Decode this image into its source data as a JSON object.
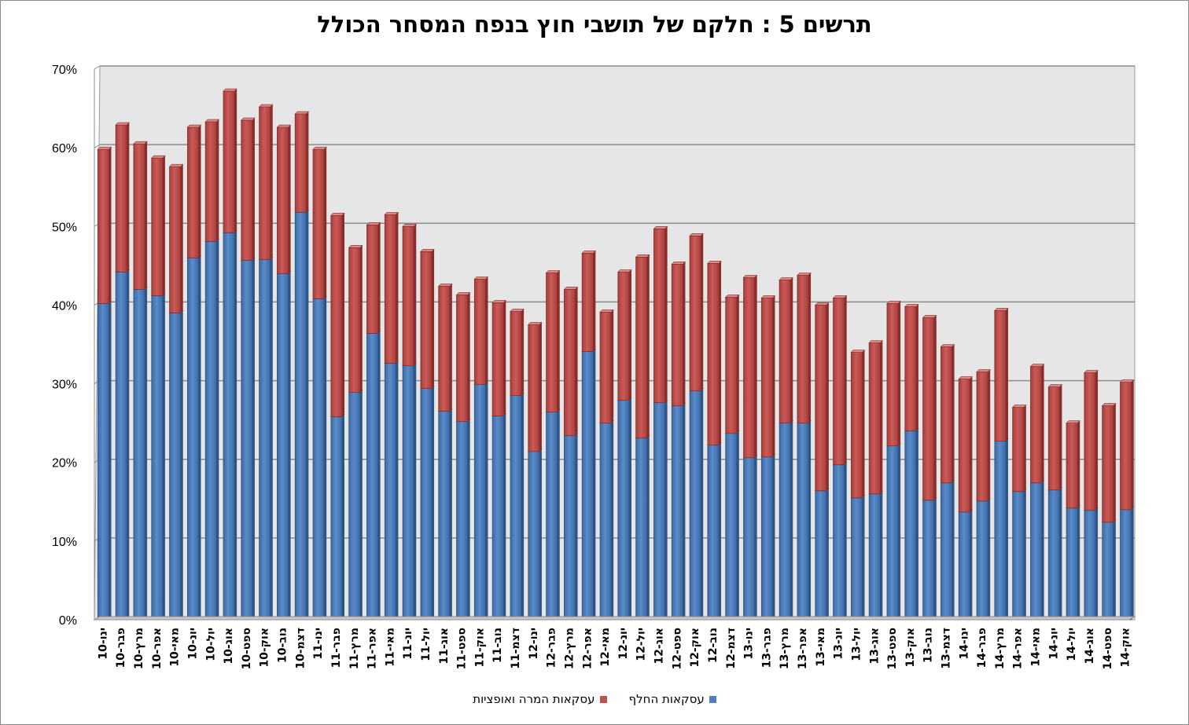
{
  "chart_data": {
    "type": "bar",
    "stacked": true,
    "title": "תרשים 5 : חלקם של תושבי חוץ בנפח המסחר הכולל",
    "xlabel": "",
    "ylabel": "",
    "ylim": [
      0,
      70
    ],
    "y_ticks": [
      "0%",
      "10%",
      "20%",
      "30%",
      "40%",
      "50%",
      "60%",
      "70%"
    ],
    "grid": true,
    "legend_position": "bottom",
    "categories": [
      "ינו-10",
      "פבר-10",
      "מרץ-10",
      "אפר-10",
      "מאי-10",
      "יונ-10",
      "יול-10",
      "אוג-10",
      "ספט-10",
      "אוק-10",
      "נוב-10",
      "דצמ-10",
      "ינו-11",
      "פבר-11",
      "מרץ-11",
      "אפר-11",
      "מאי-11",
      "יונ-11",
      "יול-11",
      "אוג-11",
      "ספט-11",
      "אוק-11",
      "נוב-11",
      "דצמ-11",
      "ינו-12",
      "פבר-12",
      "מרץ-12",
      "אפר-12",
      "מאי-12",
      "יונ-12",
      "יול-12",
      "אוג-12",
      "ספט-12",
      "אוק-12",
      "נוב-12",
      "דצמ-12",
      "ינו-13",
      "פבר-13",
      "מרץ-13",
      "אפר-13",
      "מאי-13",
      "יונ-13",
      "יול-13",
      "אוג-13",
      "ספט-13",
      "אוק-13",
      "נוב-13",
      "דצמ-13",
      "ינו-14",
      "פבר-14",
      "מרץ-14",
      "אפר-14",
      "מאי-14",
      "יונ-14",
      "יול-14",
      "אוג-14",
      "ספט-14",
      "אוק-14"
    ],
    "series": [
      {
        "name": "עסקאות החלף",
        "color": "#4f81bd",
        "values": [
          40.2,
          44.2,
          42.0,
          41.2,
          39.0,
          46.0,
          48.1,
          49.2,
          45.7,
          45.8,
          44.0,
          51.8,
          40.8,
          25.8,
          28.9,
          36.4,
          32.6,
          32.3,
          29.4,
          26.5,
          25.2,
          29.9,
          25.9,
          28.5,
          21.4,
          26.4,
          23.4,
          34.1,
          25.0,
          27.9,
          23.1,
          27.6,
          27.2,
          29.1,
          22.2,
          23.7,
          20.6,
          20.7,
          25.0,
          25.0,
          16.4,
          19.7,
          15.5,
          16.0,
          22.1,
          24.0,
          15.2,
          17.4,
          13.7,
          15.1,
          22.7,
          16.3,
          17.4,
          16.5,
          14.2,
          13.9,
          12.4,
          14.0
        ]
      },
      {
        "name": "עסקאות המרה ואופציות",
        "color": "#c0504d",
        "values": [
          19.6,
          18.7,
          18.5,
          17.5,
          18.6,
          16.6,
          15.2,
          18.0,
          17.8,
          19.4,
          18.6,
          12.5,
          19.0,
          25.6,
          18.4,
          13.8,
          18.9,
          17.7,
          17.4,
          15.9,
          16.1,
          13.4,
          14.4,
          10.7,
          16.1,
          17.7,
          18.6,
          12.5,
          14.1,
          16.3,
          23.0,
          22.1,
          18.0,
          19.7,
          23.1,
          17.3,
          22.9,
          20.2,
          18.2,
          18.8,
          23.6,
          21.2,
          18.5,
          19.2,
          18.1,
          15.8,
          23.2,
          17.3,
          16.9,
          16.4,
          16.6,
          10.7,
          14.8,
          13.1,
          10.8,
          17.5,
          14.8,
          16.2
        ]
      }
    ]
  }
}
